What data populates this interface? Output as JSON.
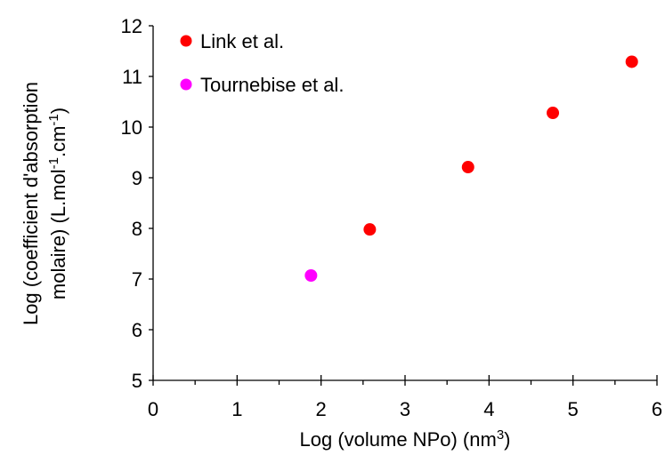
{
  "chart_data": {
    "type": "scatter",
    "title": "",
    "xlabel": "Log (volume NPo) (nm",
    "xlabel_sup": "3",
    "xlabel_end": ")",
    "ylabel_line1": "Log (coefficient d'absorption",
    "ylabel_line2_a": "molaire) (L.mol",
    "ylabel_line2_sup1": "-1",
    "ylabel_line2_b": ".cm",
    "ylabel_line2_sup2": "-1",
    "ylabel_line2_c": ")",
    "xlim": [
      0,
      6
    ],
    "ylim": [
      5,
      12
    ],
    "xticks": [
      0,
      1,
      2,
      3,
      4,
      5,
      6
    ],
    "yticks": [
      5,
      6,
      7,
      8,
      9,
      10,
      11,
      12
    ],
    "grid": false,
    "legend_position": "top-left",
    "series": [
      {
        "name": "Link et al.",
        "color": "#ff0000",
        "points": [
          {
            "x": 2.58,
            "y": 7.98
          },
          {
            "x": 3.75,
            "y": 9.21
          },
          {
            "x": 4.76,
            "y": 10.28
          },
          {
            "x": 5.7,
            "y": 11.29
          }
        ]
      },
      {
        "name": "Tournebise et al.",
        "color": "#ff00ff",
        "points": [
          {
            "x": 1.88,
            "y": 7.07
          }
        ]
      }
    ]
  }
}
